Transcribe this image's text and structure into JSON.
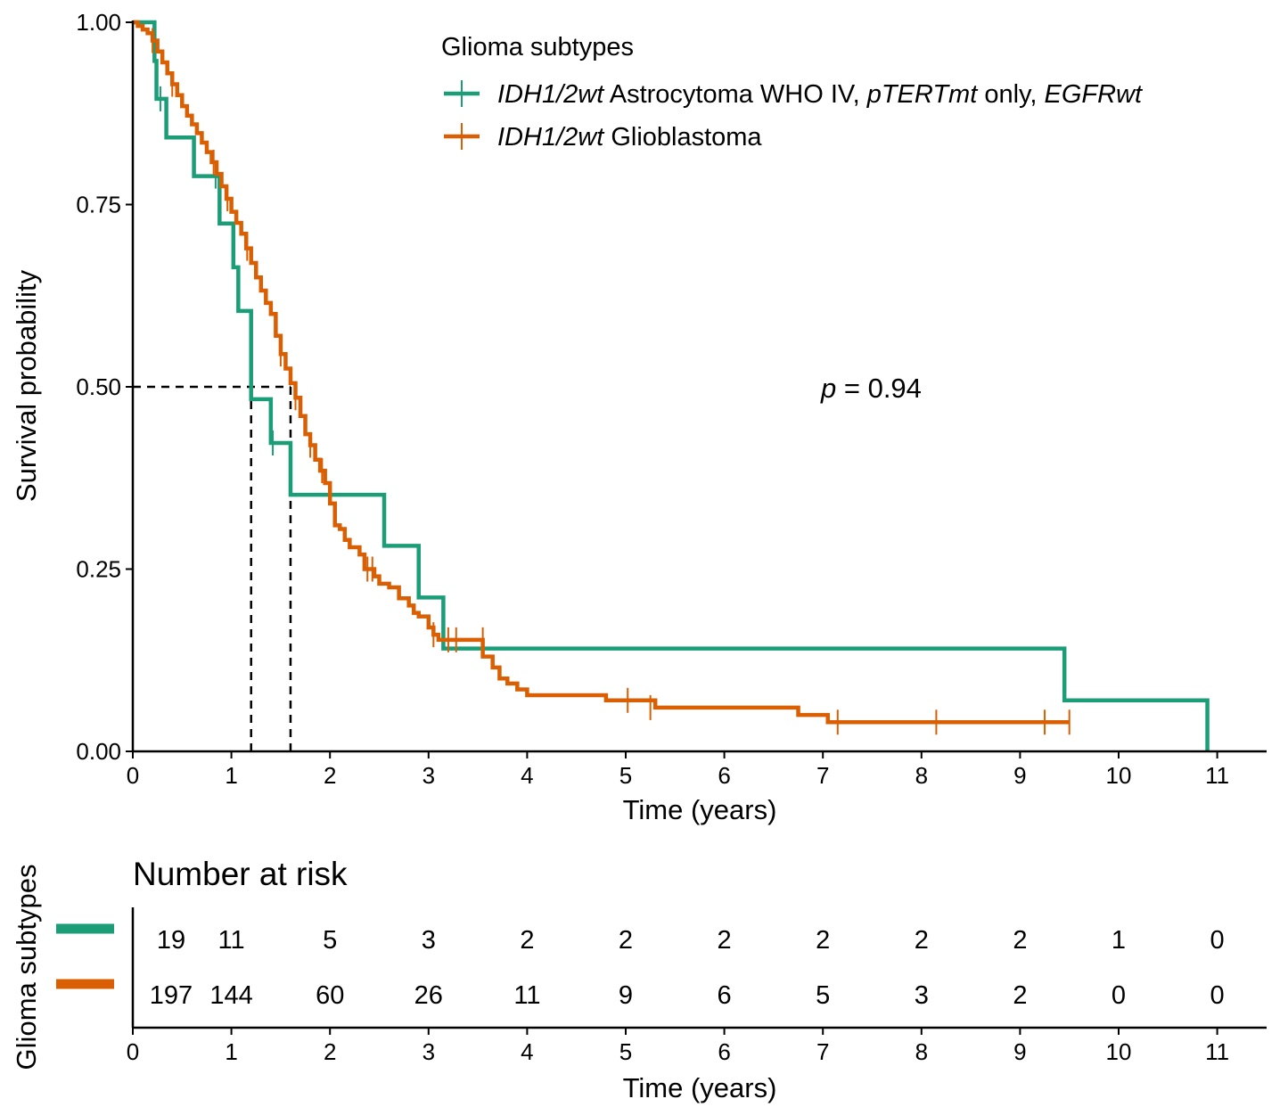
{
  "colors": {
    "green": "#1b9e77",
    "orange": "#d95f02"
  },
  "chart_data": [
    {
      "type": "line",
      "subtype": "kaplan-meier",
      "xlabel": "Time (years)",
      "ylabel": "Survival probability",
      "xlim": [
        0,
        11.5
      ],
      "ylim": [
        0,
        1
      ],
      "x_ticks": [
        "0",
        "1",
        "2",
        "3",
        "4",
        "5",
        "6",
        "7",
        "8",
        "9",
        "10",
        "11"
      ],
      "y_ticks": [
        "0.00",
        "0.25",
        "0.50",
        "0.75",
        "1.00"
      ],
      "legend": {
        "title": "Glioma subtypes",
        "placement": "top-right",
        "entries": [
          {
            "parts": [
              {
                "text": "IDH1/2wt",
                "italic": true
              },
              {
                "text": " Astrocytoma WHO IV, ",
                "italic": false
              },
              {
                "text": "pTERTmt",
                "italic": true
              },
              {
                "text": " only, ",
                "italic": false
              },
              {
                "text": "EGFRwt",
                "italic": true
              }
            ]
          },
          {
            "parts": [
              {
                "text": "IDH1/2wt",
                "italic": true
              },
              {
                "text": " Glioblastoma",
                "italic": false
              }
            ]
          }
        ]
      },
      "annotation": {
        "p_symbol": "p",
        "p_text": " = 0.94"
      },
      "median_survival": {
        "y": 0.5,
        "x": [
          1.2,
          1.6
        ]
      },
      "series": [
        {
          "color": "#1b9e77",
          "steps": [
            [
              0,
              1.0
            ],
            [
              0.22,
              0.947
            ],
            [
              0.24,
              0.895
            ],
            [
              0.34,
              0.842
            ],
            [
              0.62,
              0.789
            ],
            [
              0.88,
              0.724
            ],
            [
              1.02,
              0.664
            ],
            [
              1.07,
              0.604
            ],
            [
              1.2,
              0.483
            ],
            [
              1.4,
              0.423
            ],
            [
              1.6,
              0.352
            ],
            [
              2.55,
              0.282
            ],
            [
              2.9,
              0.211
            ],
            [
              3.15,
              0.141
            ],
            [
              9.45,
              0.07
            ],
            [
              10.9,
              0.0
            ]
          ],
          "end_x": 10.9,
          "censors": [
            [
              0.28,
              0.895
            ],
            [
              0.84,
              0.789
            ],
            [
              1.42,
              0.423
            ]
          ]
        },
        {
          "color": "#d95f02",
          "steps": [
            [
              0,
              1.0
            ],
            [
              0.05,
              0.995
            ],
            [
              0.1,
              0.99
            ],
            [
              0.15,
              0.985
            ],
            [
              0.2,
              0.975
            ],
            [
              0.25,
              0.96
            ],
            [
              0.3,
              0.945
            ],
            [
              0.35,
              0.93
            ],
            [
              0.4,
              0.915
            ],
            [
              0.45,
              0.9
            ],
            [
              0.5,
              0.885
            ],
            [
              0.55,
              0.872
            ],
            [
              0.6,
              0.86
            ],
            [
              0.65,
              0.848
            ],
            [
              0.7,
              0.835
            ],
            [
              0.75,
              0.822
            ],
            [
              0.8,
              0.808
            ],
            [
              0.85,
              0.792
            ],
            [
              0.9,
              0.775
            ],
            [
              0.95,
              0.758
            ],
            [
              1.0,
              0.74
            ],
            [
              1.05,
              0.725
            ],
            [
              1.1,
              0.71
            ],
            [
              1.15,
              0.69
            ],
            [
              1.2,
              0.67
            ],
            [
              1.25,
              0.65
            ],
            [
              1.3,
              0.632
            ],
            [
              1.35,
              0.615
            ],
            [
              1.4,
              0.6
            ],
            [
              1.45,
              0.57
            ],
            [
              1.5,
              0.545
            ],
            [
              1.55,
              0.525
            ],
            [
              1.6,
              0.505
            ],
            [
              1.65,
              0.485
            ],
            [
              1.7,
              0.46
            ],
            [
              1.75,
              0.435
            ],
            [
              1.8,
              0.42
            ],
            [
              1.85,
              0.4
            ],
            [
              1.9,
              0.385
            ],
            [
              1.95,
              0.368
            ],
            [
              2.0,
              0.34
            ],
            [
              2.05,
              0.31
            ],
            [
              2.1,
              0.305
            ],
            [
              2.15,
              0.29
            ],
            [
              2.2,
              0.28
            ],
            [
              2.3,
              0.27
            ],
            [
              2.35,
              0.25
            ],
            [
              2.45,
              0.24
            ],
            [
              2.5,
              0.23
            ],
            [
              2.6,
              0.225
            ],
            [
              2.7,
              0.21
            ],
            [
              2.8,
              0.2
            ],
            [
              2.85,
              0.19
            ],
            [
              2.9,
              0.185
            ],
            [
              3.0,
              0.17
            ],
            [
              3.05,
              0.16
            ],
            [
              3.1,
              0.153
            ],
            [
              3.55,
              0.13
            ],
            [
              3.65,
              0.115
            ],
            [
              3.72,
              0.1
            ],
            [
              3.8,
              0.093
            ],
            [
              3.9,
              0.085
            ],
            [
              4.0,
              0.077
            ],
            [
              4.8,
              0.07
            ],
            [
              5.3,
              0.06
            ],
            [
              6.75,
              0.05
            ],
            [
              7.05,
              0.04
            ]
          ],
          "end_x": 9.5,
          "censors": [
            [
              0.2,
              0.975
            ],
            [
              0.4,
              0.915
            ],
            [
              0.82,
              0.808
            ],
            [
              0.96,
              0.758
            ],
            [
              1.16,
              0.69
            ],
            [
              1.5,
              0.545
            ],
            [
              1.65,
              0.485
            ],
            [
              1.8,
              0.42
            ],
            [
              1.92,
              0.385
            ],
            [
              2.38,
              0.25
            ],
            [
              2.43,
              0.25
            ],
            [
              3.05,
              0.16
            ],
            [
              3.2,
              0.153
            ],
            [
              3.28,
              0.153
            ],
            [
              3.55,
              0.153
            ],
            [
              5.02,
              0.07
            ],
            [
              5.25,
              0.06
            ],
            [
              7.15,
              0.04
            ],
            [
              8.15,
              0.04
            ],
            [
              9.25,
              0.04
            ],
            [
              9.5,
              0.04
            ]
          ]
        }
      ]
    },
    {
      "type": "table",
      "title": "Number at risk",
      "ylabel": "Glioma subtypes",
      "xlabel": "Time (years)",
      "x_ticks": [
        "0",
        "1",
        "2",
        "3",
        "4",
        "5",
        "6",
        "7",
        "8",
        "9",
        "10",
        "11"
      ],
      "rows": [
        {
          "color": "#1b9e77",
          "values": [
            "19",
            "11",
            "5",
            "3",
            "2",
            "2",
            "2",
            "2",
            "2",
            "2",
            "1",
            "0"
          ]
        },
        {
          "color": "#d95f02",
          "values": [
            "197",
            "144",
            "60",
            "26",
            "11",
            "9",
            "6",
            "5",
            "3",
            "2",
            "0",
            "0"
          ]
        }
      ]
    }
  ]
}
